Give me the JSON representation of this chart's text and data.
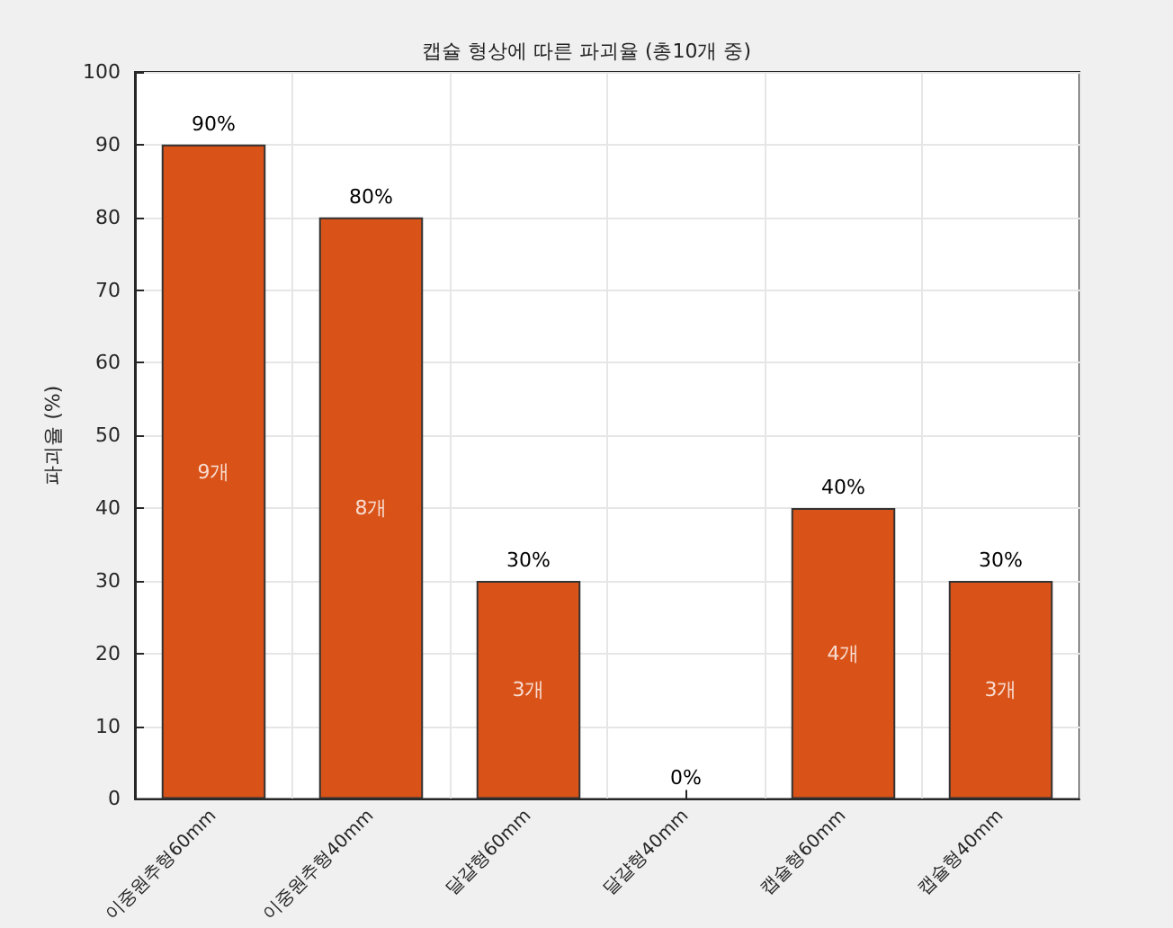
{
  "chart_data": {
    "type": "bar",
    "title": "캡슐 형상에 따른 파괴율 (총10개 중)",
    "ylabel": "파괴율 (%)",
    "categories": [
      "이중원추형60mm",
      "이중원추형40mm",
      "달걀형60mm",
      "달걀형40mm",
      "캡슐형60mm",
      "캡슐형40mm"
    ],
    "values": [
      90,
      80,
      30,
      0,
      40,
      30
    ],
    "value_labels": [
      "90%",
      "80%",
      "30%",
      "0%",
      "40%",
      "30%"
    ],
    "color": "#d95319",
    "ylim": [
      0,
      100
    ],
    "yticks": [
      0,
      10,
      20,
      30,
      40,
      50,
      60,
      70,
      80,
      90,
      100
    ],
    "grid": true,
    "annotations": [
      "9개",
      "8개",
      "3개",
      "4개",
      "3개"
    ]
  }
}
